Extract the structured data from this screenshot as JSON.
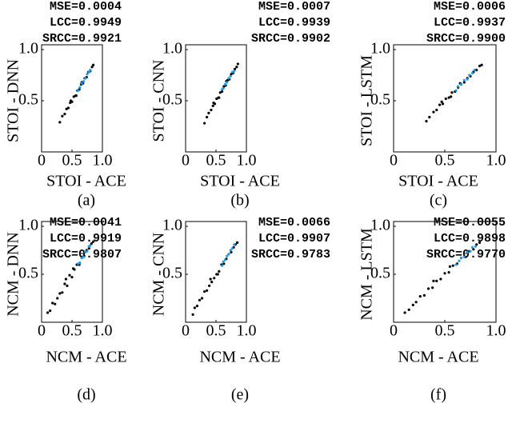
{
  "chart_data": [
    {
      "type": "scatter",
      "annotations": [
        "MSE=0.0004",
        "LCC=0.9949",
        "SRCC=0.9921"
      ],
      "xlabel": "STOI - ACE",
      "ylabel": "STOI - DNN",
      "caption": "(a)",
      "xlim": [
        0,
        1
      ],
      "ylim": [
        0,
        1
      ],
      "xticks": [
        0,
        0.5,
        {
          "value": 1,
          "label": "1.0"
        }
      ],
      "yticks": [
        0.5,
        {
          "value": 1,
          "label": "1.0"
        }
      ],
      "series": [
        {
          "color": "#000000",
          "x": [
            0.3,
            0.34,
            0.38,
            0.41,
            0.44,
            0.47,
            0.5,
            0.53,
            0.56,
            0.59,
            0.62,
            0.65,
            0.68,
            0.71,
            0.74,
            0.77,
            0.8,
            0.83,
            0.85,
            0.48,
            0.57,
            0.66
          ],
          "values": [
            0.29,
            0.35,
            0.37,
            0.42,
            0.43,
            0.48,
            0.49,
            0.54,
            0.55,
            0.6,
            0.61,
            0.66,
            0.67,
            0.72,
            0.73,
            0.78,
            0.79,
            0.83,
            0.85,
            0.5,
            0.55,
            0.68
          ]
        },
        {
          "color": "#1f9be0",
          "x": [
            0.6,
            0.63,
            0.66,
            0.69,
            0.72,
            0.75,
            0.78,
            0.8
          ],
          "values": [
            0.6,
            0.63,
            0.67,
            0.69,
            0.72,
            0.76,
            0.78,
            0.8
          ]
        }
      ]
    },
    {
      "type": "scatter",
      "annotations": [
        "MSE=0.0007",
        "LCC=0.9939",
        "SRCC=0.9902"
      ],
      "xlabel": "STOI - ACE",
      "ylabel": "STOI - CNN",
      "caption": "(b)",
      "xlim": [
        0,
        1
      ],
      "ylim": [
        0,
        1
      ],
      "xticks": [
        0,
        0.5,
        {
          "value": 1,
          "label": "1.0"
        }
      ],
      "yticks": [
        0.5,
        {
          "value": 1,
          "label": "1.0"
        }
      ],
      "series": [
        {
          "color": "#000000",
          "x": [
            0.31,
            0.35,
            0.38,
            0.42,
            0.45,
            0.48,
            0.51,
            0.54,
            0.57,
            0.6,
            0.63,
            0.66,
            0.69,
            0.72,
            0.75,
            0.78,
            0.81,
            0.84,
            0.86,
            0.46,
            0.55,
            0.67
          ],
          "values": [
            0.28,
            0.34,
            0.38,
            0.41,
            0.45,
            0.47,
            0.52,
            0.53,
            0.58,
            0.59,
            0.64,
            0.65,
            0.7,
            0.71,
            0.76,
            0.77,
            0.81,
            0.83,
            0.86,
            0.48,
            0.53,
            0.69
          ]
        },
        {
          "color": "#1f9be0",
          "x": [
            0.6,
            0.62,
            0.65,
            0.68,
            0.71,
            0.74,
            0.77,
            0.8
          ],
          "values": [
            0.61,
            0.62,
            0.66,
            0.68,
            0.72,
            0.74,
            0.78,
            0.79
          ]
        }
      ]
    },
    {
      "type": "scatter",
      "annotations": [
        "MSE=0.0006",
        "LCC=0.9937",
        "SRCC=0.9900"
      ],
      "xlabel": "STOI - ACE",
      "ylabel": "STOI - LSTM",
      "caption": "(c)",
      "xlim": [
        0,
        1
      ],
      "ylim": [
        0,
        1
      ],
      "xticks": [
        0,
        0.5,
        {
          "value": 1,
          "label": "1.0"
        }
      ],
      "yticks": [
        0.5,
        {
          "value": 1,
          "label": "1.0"
        }
      ],
      "series": [
        {
          "color": "#000000",
          "x": [
            0.32,
            0.35,
            0.39,
            0.42,
            0.45,
            0.48,
            0.51,
            0.54,
            0.57,
            0.6,
            0.63,
            0.66,
            0.69,
            0.72,
            0.75,
            0.78,
            0.81,
            0.84,
            0.86,
            0.47,
            0.56,
            0.65
          ],
          "values": [
            0.3,
            0.34,
            0.39,
            0.41,
            0.46,
            0.47,
            0.52,
            0.53,
            0.58,
            0.59,
            0.63,
            0.66,
            0.68,
            0.72,
            0.74,
            0.78,
            0.8,
            0.84,
            0.85,
            0.49,
            0.54,
            0.67
          ]
        },
        {
          "color": "#1f9be0",
          "x": [
            0.61,
            0.63,
            0.66,
            0.69,
            0.72,
            0.74,
            0.77,
            0.79
          ],
          "values": [
            0.6,
            0.64,
            0.66,
            0.7,
            0.71,
            0.75,
            0.77,
            0.8
          ]
        }
      ]
    },
    {
      "type": "scatter",
      "annotations": [
        "MSE=0.0041",
        "LCC=0.9919",
        "SRCC=0.9807"
      ],
      "xlabel": "NCM - ACE",
      "ylabel": "NCM - DNN",
      "caption": "(d)",
      "xlim": [
        0,
        1
      ],
      "ylim": [
        0,
        1
      ],
      "xticks": [
        0,
        0.5,
        {
          "value": 1,
          "label": "1.0"
        }
      ],
      "yticks": [
        0.5,
        {
          "value": 1,
          "label": "1.0"
        }
      ],
      "series": [
        {
          "color": "#000000",
          "x": [
            0.1,
            0.14,
            0.18,
            0.22,
            0.26,
            0.3,
            0.34,
            0.38,
            0.42,
            0.46,
            0.5,
            0.54,
            0.58,
            0.62,
            0.66,
            0.7,
            0.74,
            0.78,
            0.82,
            0.85,
            0.4,
            0.52
          ],
          "values": [
            0.1,
            0.12,
            0.2,
            0.19,
            0.25,
            0.3,
            0.31,
            0.4,
            0.38,
            0.49,
            0.47,
            0.55,
            0.6,
            0.6,
            0.68,
            0.69,
            0.75,
            0.77,
            0.82,
            0.84,
            0.45,
            0.56
          ]
        },
        {
          "color": "#1f9be0",
          "x": [
            0.6,
            0.63,
            0.66,
            0.69,
            0.72,
            0.75,
            0.78,
            0.8
          ],
          "values": [
            0.61,
            0.62,
            0.67,
            0.68,
            0.73,
            0.74,
            0.79,
            0.8
          ]
        }
      ]
    },
    {
      "type": "scatter",
      "annotations": [
        "MSE=0.0066",
        "LCC=0.9907",
        "SRCC=0.9783"
      ],
      "xlabel": "NCM - ACE",
      "ylabel": "NCM - CNN",
      "caption": "(e)",
      "xlim": [
        0,
        1
      ],
      "ylim": [
        0,
        1
      ],
      "xticks": [
        0,
        0.5,
        {
          "value": 1,
          "label": "1.0"
        }
      ],
      "yticks": [
        0.5,
        {
          "value": 1,
          "label": "1.0"
        }
      ],
      "series": [
        {
          "color": "#000000",
          "x": [
            0.12,
            0.15,
            0.19,
            0.23,
            0.27,
            0.31,
            0.35,
            0.39,
            0.43,
            0.47,
            0.51,
            0.55,
            0.59,
            0.63,
            0.67,
            0.71,
            0.75,
            0.79,
            0.82,
            0.85,
            0.41,
            0.53
          ],
          "values": [
            0.08,
            0.15,
            0.17,
            0.23,
            0.25,
            0.32,
            0.33,
            0.38,
            0.42,
            0.46,
            0.5,
            0.53,
            0.6,
            0.61,
            0.66,
            0.71,
            0.73,
            0.78,
            0.81,
            0.83,
            0.45,
            0.5
          ]
        },
        {
          "color": "#1f9be0",
          "x": [
            0.6,
            0.62,
            0.65,
            0.68,
            0.71,
            0.74,
            0.77,
            0.8
          ],
          "values": [
            0.59,
            0.63,
            0.65,
            0.69,
            0.71,
            0.75,
            0.77,
            0.81
          ]
        }
      ]
    },
    {
      "type": "scatter",
      "annotations": [
        "MSE=0.0055",
        "LCC=0.9898",
        "SRCC=0.9770"
      ],
      "xlabel": "NCM - ACE",
      "ylabel": "NCM - LSTM",
      "caption": "(f)",
      "xlim": [
        0,
        1
      ],
      "ylim": [
        0,
        1
      ],
      "xticks": [
        0,
        0.5,
        {
          "value": 1,
          "label": "1.0"
        }
      ],
      "yticks": [
        0.5,
        {
          "value": 1,
          "label": "1.0"
        }
      ],
      "series": [
        {
          "color": "#000000",
          "x": [
            0.11,
            0.15,
            0.19,
            0.22,
            0.26,
            0.3,
            0.34,
            0.38,
            0.42,
            0.46,
            0.5,
            0.54,
            0.58,
            0.62,
            0.66,
            0.7,
            0.74,
            0.78,
            0.81,
            0.84,
            0.39,
            0.55
          ],
          "values": [
            0.1,
            0.13,
            0.18,
            0.21,
            0.27,
            0.28,
            0.35,
            0.36,
            0.43,
            0.45,
            0.51,
            0.52,
            0.59,
            0.61,
            0.67,
            0.68,
            0.74,
            0.76,
            0.81,
            0.83,
            0.43,
            0.58
          ]
        },
        {
          "color": "#1f9be0",
          "x": [
            0.61,
            0.64,
            0.66,
            0.69,
            0.72,
            0.75,
            0.77,
            0.8
          ],
          "values": [
            0.6,
            0.64,
            0.67,
            0.68,
            0.73,
            0.74,
            0.78,
            0.79
          ]
        }
      ]
    }
  ]
}
